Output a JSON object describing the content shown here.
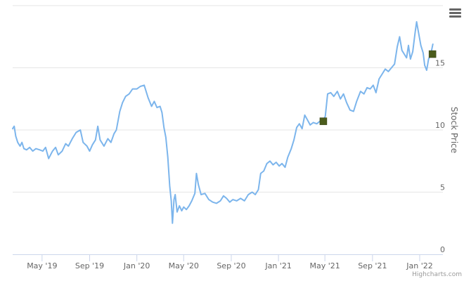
{
  "chart_data": {
    "type": "line",
    "title": "",
    "xlabel": "",
    "ylabel": "Stock Price",
    "ylim": [
      0,
      20
    ],
    "xlim": [
      "2019-02-14",
      "2022-03-02"
    ],
    "y_ticks": [
      "0",
      "5",
      "10",
      "15"
    ],
    "x_ticks": [
      {
        "label": "May '19",
        "date": "2019-05-01"
      },
      {
        "label": "Sep '19",
        "date": "2019-09-01"
      },
      {
        "label": "Jan '20",
        "date": "2020-01-01"
      },
      {
        "label": "May '20",
        "date": "2020-05-01"
      },
      {
        "label": "Sep '20",
        "date": "2020-09-01"
      },
      {
        "label": "Jan '21",
        "date": "2021-01-01"
      },
      {
        "label": "May '21",
        "date": "2021-05-01"
      },
      {
        "label": "Sep '21",
        "date": "2021-09-01"
      },
      {
        "label": "Jan '22",
        "date": "2022-01-01"
      }
    ],
    "grid": true,
    "legend": "none",
    "series": [
      {
        "color": "#7cb5ec",
        "points": [
          [
            "2019-02-14",
            10.1
          ],
          [
            "2019-02-18",
            10.3
          ],
          [
            "2019-02-22",
            9.5
          ],
          [
            "2019-02-27",
            9.0
          ],
          [
            "2019-03-05",
            8.7
          ],
          [
            "2019-03-10",
            9.0
          ],
          [
            "2019-03-15",
            8.5
          ],
          [
            "2019-03-22",
            8.4
          ],
          [
            "2019-03-30",
            8.6
          ],
          [
            "2019-04-07",
            8.3
          ],
          [
            "2019-04-15",
            8.5
          ],
          [
            "2019-04-25",
            8.4
          ],
          [
            "2019-05-03",
            8.3
          ],
          [
            "2019-05-10",
            8.6
          ],
          [
            "2019-05-18",
            7.7
          ],
          [
            "2019-05-28",
            8.3
          ],
          [
            "2019-06-05",
            8.6
          ],
          [
            "2019-06-12",
            8.0
          ],
          [
            "2019-06-22",
            8.3
          ],
          [
            "2019-07-01",
            8.9
          ],
          [
            "2019-07-08",
            8.7
          ],
          [
            "2019-07-18",
            9.3
          ],
          [
            "2019-07-28",
            9.8
          ],
          [
            "2019-08-08",
            10.0
          ],
          [
            "2019-08-15",
            9.0
          ],
          [
            "2019-08-25",
            8.7
          ],
          [
            "2019-09-01",
            8.3
          ],
          [
            "2019-09-08",
            8.8
          ],
          [
            "2019-09-16",
            9.2
          ],
          [
            "2019-09-22",
            10.3
          ],
          [
            "2019-09-28",
            9.2
          ],
          [
            "2019-10-08",
            8.7
          ],
          [
            "2019-10-18",
            9.3
          ],
          [
            "2019-10-26",
            9.0
          ],
          [
            "2019-11-03",
            9.7
          ],
          [
            "2019-11-09",
            10.0
          ],
          [
            "2019-11-18",
            11.5
          ],
          [
            "2019-11-25",
            12.2
          ],
          [
            "2019-12-03",
            12.7
          ],
          [
            "2019-12-12",
            12.9
          ],
          [
            "2019-12-21",
            13.3
          ],
          [
            "2020-01-01",
            13.3
          ],
          [
            "2020-01-10",
            13.5
          ],
          [
            "2020-01-20",
            13.6
          ],
          [
            "2020-01-30",
            12.6
          ],
          [
            "2020-02-08",
            11.9
          ],
          [
            "2020-02-15",
            12.3
          ],
          [
            "2020-02-22",
            11.8
          ],
          [
            "2020-03-01",
            11.9
          ],
          [
            "2020-03-06",
            11.4
          ],
          [
            "2020-03-11",
            10.2
          ],
          [
            "2020-03-16",
            9.4
          ],
          [
            "2020-03-21",
            7.8
          ],
          [
            "2020-03-26",
            5.5
          ],
          [
            "2020-03-30",
            4.3
          ],
          [
            "2020-04-02",
            2.5
          ],
          [
            "2020-04-06",
            4.4
          ],
          [
            "2020-04-09",
            4.8
          ],
          [
            "2020-04-14",
            3.4
          ],
          [
            "2020-04-20",
            3.9
          ],
          [
            "2020-04-26",
            3.5
          ],
          [
            "2020-05-01",
            3.8
          ],
          [
            "2020-05-08",
            3.6
          ],
          [
            "2020-05-15",
            3.9
          ],
          [
            "2020-05-22",
            4.3
          ],
          [
            "2020-05-30",
            4.9
          ],
          [
            "2020-06-03",
            6.5
          ],
          [
            "2020-06-08",
            5.6
          ],
          [
            "2020-06-15",
            4.8
          ],
          [
            "2020-06-25",
            4.9
          ],
          [
            "2020-07-05",
            4.4
          ],
          [
            "2020-07-15",
            4.2
          ],
          [
            "2020-07-25",
            4.1
          ],
          [
            "2020-08-04",
            4.3
          ],
          [
            "2020-08-12",
            4.7
          ],
          [
            "2020-08-20",
            4.5
          ],
          [
            "2020-08-28",
            4.2
          ],
          [
            "2020-09-05",
            4.4
          ],
          [
            "2020-09-15",
            4.3
          ],
          [
            "2020-09-25",
            4.5
          ],
          [
            "2020-10-05",
            4.3
          ],
          [
            "2020-10-15",
            4.8
          ],
          [
            "2020-10-25",
            5.0
          ],
          [
            "2020-11-02",
            4.8
          ],
          [
            "2020-11-10",
            5.2
          ],
          [
            "2020-11-16",
            6.5
          ],
          [
            "2020-11-24",
            6.7
          ],
          [
            "2020-12-02",
            7.3
          ],
          [
            "2020-12-10",
            7.5
          ],
          [
            "2020-12-18",
            7.2
          ],
          [
            "2020-12-26",
            7.4
          ],
          [
            "2021-01-03",
            7.1
          ],
          [
            "2021-01-10",
            7.3
          ],
          [
            "2021-01-18",
            7.0
          ],
          [
            "2021-01-25",
            7.8
          ],
          [
            "2021-02-03",
            8.5
          ],
          [
            "2021-02-10",
            9.2
          ],
          [
            "2021-02-17",
            10.2
          ],
          [
            "2021-02-24",
            10.5
          ],
          [
            "2021-03-03",
            10.1
          ],
          [
            "2021-03-10",
            11.2
          ],
          [
            "2021-03-17",
            10.8
          ],
          [
            "2021-03-24",
            10.4
          ],
          [
            "2021-04-01",
            10.6
          ],
          [
            "2021-04-10",
            10.5
          ],
          [
            "2021-04-18",
            10.7
          ],
          [
            "2021-04-25",
            10.6
          ],
          [
            "2021-05-02",
            11.1
          ],
          [
            "2021-05-08",
            12.9
          ],
          [
            "2021-05-16",
            13.0
          ],
          [
            "2021-05-24",
            12.7
          ],
          [
            "2021-06-02",
            13.1
          ],
          [
            "2021-06-10",
            12.5
          ],
          [
            "2021-06-18",
            12.9
          ],
          [
            "2021-06-26",
            12.2
          ],
          [
            "2021-07-05",
            11.6
          ],
          [
            "2021-07-14",
            11.5
          ],
          [
            "2021-07-22",
            12.3
          ],
          [
            "2021-08-01",
            13.1
          ],
          [
            "2021-08-10",
            12.9
          ],
          [
            "2021-08-18",
            13.4
          ],
          [
            "2021-08-26",
            13.3
          ],
          [
            "2021-09-03",
            13.6
          ],
          [
            "2021-09-10",
            13.0
          ],
          [
            "2021-09-18",
            14.1
          ],
          [
            "2021-09-26",
            14.5
          ],
          [
            "2021-10-04",
            14.9
          ],
          [
            "2021-10-12",
            14.7
          ],
          [
            "2021-10-20",
            15.0
          ],
          [
            "2021-10-28",
            15.3
          ],
          [
            "2021-11-04",
            16.7
          ],
          [
            "2021-11-10",
            17.5
          ],
          [
            "2021-11-16",
            16.4
          ],
          [
            "2021-11-22",
            16.1
          ],
          [
            "2021-11-28",
            15.8
          ],
          [
            "2021-12-03",
            16.8
          ],
          [
            "2021-12-08",
            15.7
          ],
          [
            "2021-12-14",
            16.3
          ],
          [
            "2021-12-20",
            17.8
          ],
          [
            "2021-12-24",
            18.7
          ],
          [
            "2021-12-28",
            18.0
          ],
          [
            "2022-01-04",
            16.8
          ],
          [
            "2022-01-10",
            16.2
          ],
          [
            "2022-01-14",
            15.2
          ],
          [
            "2022-01-19",
            14.8
          ],
          [
            "2022-01-24",
            15.7
          ],
          [
            "2022-01-27",
            15.9
          ],
          [
            "2022-01-31",
            16.3
          ],
          [
            "2022-02-04",
            16.9
          ]
        ]
      }
    ],
    "markers": [
      {
        "date": "2021-04-27",
        "value": 10.7,
        "color": "#4b5c1c"
      },
      {
        "date": "2022-02-03",
        "value": 16.1,
        "color": "#4b5c1c"
      }
    ]
  },
  "credits": "Highcharts.com",
  "menu_icon": "hamburger-menu-icon"
}
